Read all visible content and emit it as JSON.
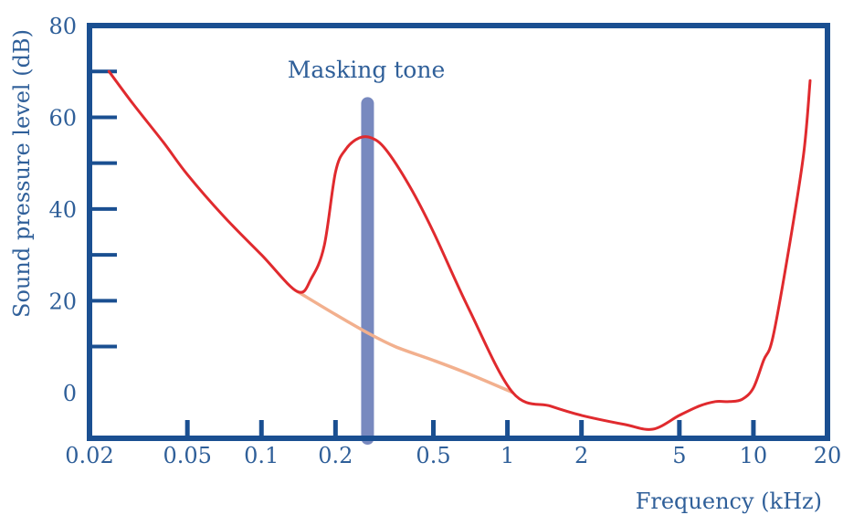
{
  "chart_data": {
    "type": "line",
    "title": "",
    "xlabel": "Frequency (kHz)",
    "ylabel": "Sound pressure level (dB)",
    "x_scale": "log",
    "xlim": [
      0.02,
      20
    ],
    "ylim": [
      -10,
      80
    ],
    "x_ticks": [
      {
        "value": 0.02,
        "label": "0.02"
      },
      {
        "value": 0.05,
        "label": "0.05"
      },
      {
        "value": 0.1,
        "label": "0.1"
      },
      {
        "value": 0.2,
        "label": "0.2"
      },
      {
        "value": 0.5,
        "label": "0.5"
      },
      {
        "value": 1,
        "label": "1"
      },
      {
        "value": 2,
        "label": "2"
      },
      {
        "value": 5,
        "label": "5"
      },
      {
        "value": 10,
        "label": "10"
      },
      {
        "value": 20,
        "label": "20"
      }
    ],
    "y_ticks": [
      {
        "value": 0,
        "label": "0"
      },
      {
        "value": 20,
        "label": "20"
      },
      {
        "value": 40,
        "label": "40"
      },
      {
        "value": 60,
        "label": "60"
      },
      {
        "value": 80,
        "label": "80"
      }
    ],
    "grid": false,
    "colors": {
      "axes": "#1a4f91",
      "label_text": "#2f5f99",
      "threshold_masked": "#e02a2e",
      "threshold_quiet": "#f2b08e",
      "masking_tone": "#7889bf"
    },
    "series": [
      {
        "x": [
          0.024,
          0.03,
          0.04,
          0.05,
          0.07,
          0.1,
          0.14,
          0.16,
          0.18,
          0.2,
          0.22,
          0.25,
          0.28,
          0.32,
          0.4,
          0.5,
          0.7,
          1.05,
          1.5,
          2,
          3,
          3.9,
          5,
          6,
          7,
          8,
          9,
          10,
          11,
          12,
          14,
          16,
          17
        ],
        "y": [
          70,
          63,
          54.5,
          47.5,
          38.5,
          30,
          22,
          25,
          32,
          48,
          53,
          55.5,
          55.5,
          53,
          45,
          35,
          18,
          0,
          -3,
          -5,
          -7,
          -8,
          -5,
          -3,
          -2,
          -2,
          -1.5,
          1,
          7,
          12,
          32,
          52,
          68
        ]
      },
      {
        "x": [
          0.14,
          0.2,
          0.27,
          0.35,
          0.5,
          0.7,
          1.05
        ],
        "y": [
          22,
          17,
          13,
          10,
          7,
          4,
          0
        ]
      }
    ],
    "annotations": [
      {
        "text": "Masking tone",
        "x": 0.27,
        "y": 63
      }
    ],
    "masking_tone": {
      "frequency": 0.27,
      "level": 63
    }
  }
}
